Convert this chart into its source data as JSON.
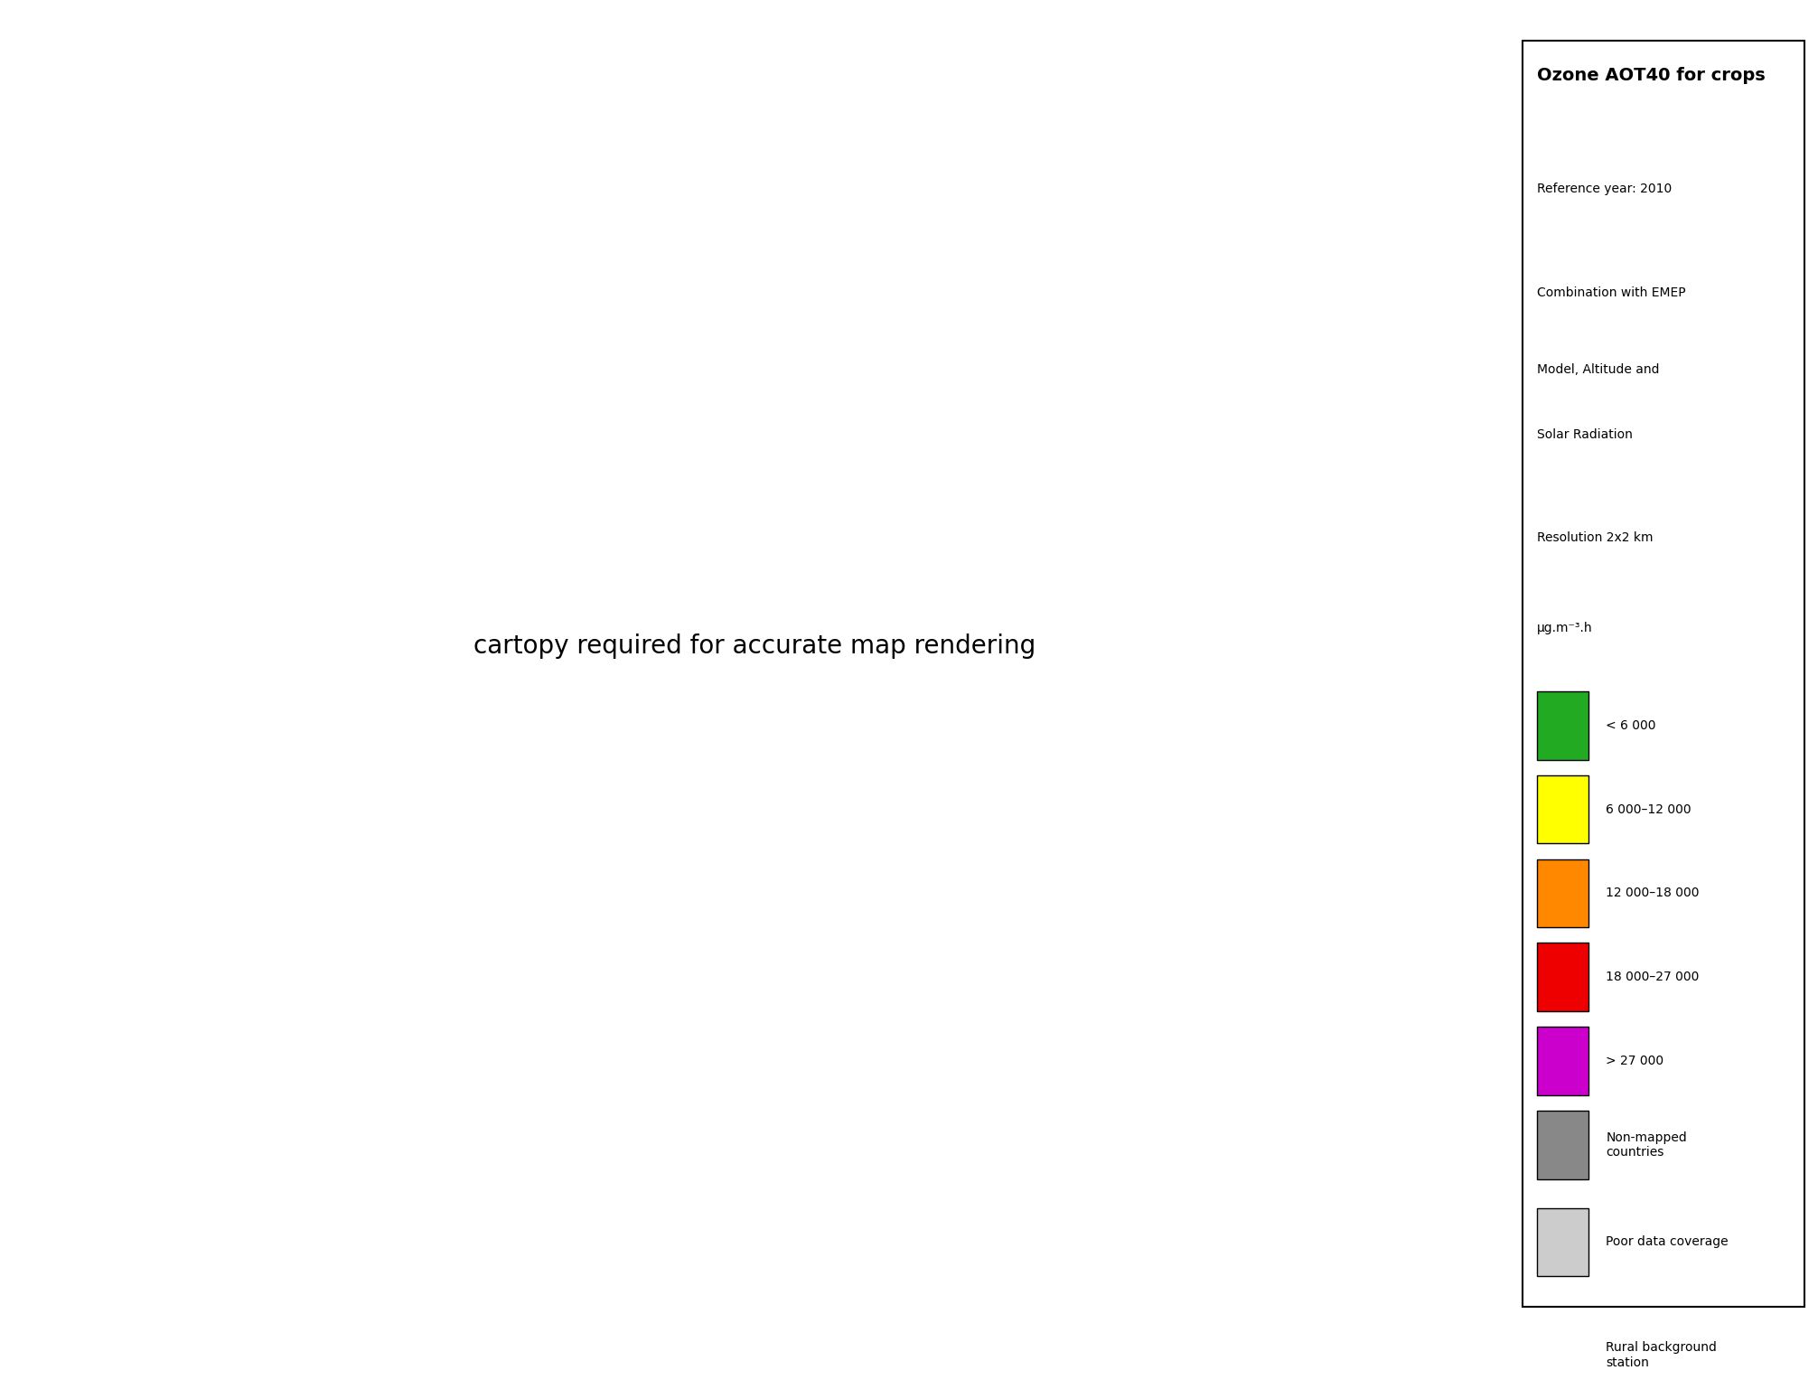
{
  "title": "Ozone AOT40 for crops",
  "ref_year": "Reference year: 2010",
  "combo_line1": "Combination with EMEP",
  "combo_line2": "Model, Altitude and",
  "combo_line3": "Solar Radiation",
  "resolution": "Resolution 2x2 km",
  "units": "μg.m⁻³.h",
  "map_bg": "#b8e8f8",
  "ocean_bg": "#c8eeff",
  "legend_bg": "#ffffff",
  "gray_dark": "#888888",
  "gray_light": "#cccccc",
  "green": "#22aa22",
  "yellow": "#ffff00",
  "orange": "#ff8800",
  "red": "#ee0000",
  "purple": "#cc00cc",
  "grid_color": "#5599ff",
  "border_color": "#666666",
  "legend_labels": [
    "< 6 000",
    "6 000–12 000",
    "12 000–18 000",
    "18 000–27 000",
    "> 27 000",
    "Non-mapped\ncountries",
    "Poor data coverage"
  ],
  "legend_colors": [
    "#22aa22",
    "#ffff00",
    "#ff8800",
    "#ee0000",
    "#cc00cc",
    "#888888",
    "#cccccc"
  ]
}
